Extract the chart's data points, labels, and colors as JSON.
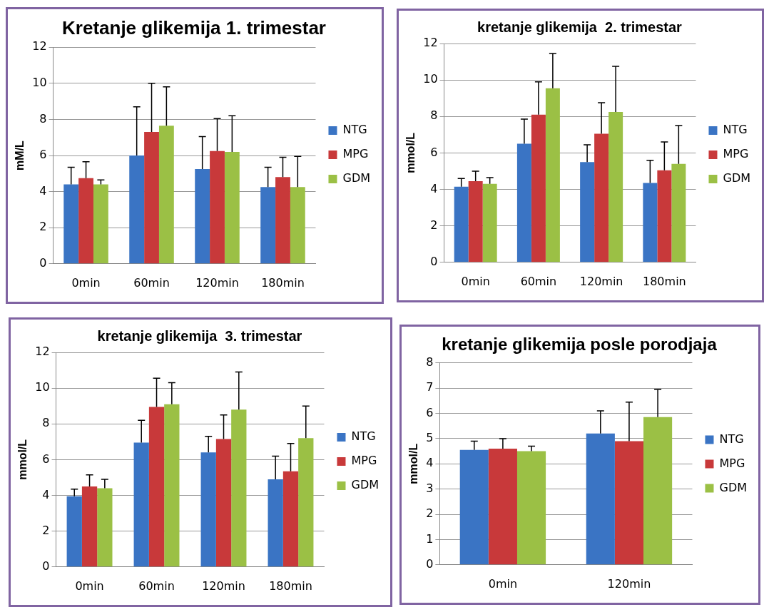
{
  "chart_data": [
    {
      "type": "bar",
      "title": "Kretanje glikemija 1. trimestar",
      "ylabel": "mM/L",
      "categories": [
        "0min",
        "60min",
        "120min",
        "180min"
      ],
      "ylim": [
        0,
        12
      ],
      "yticks": [
        0,
        2,
        4,
        6,
        8,
        10,
        12
      ],
      "grid": "y",
      "legend": "right",
      "series": [
        {
          "name": "NTG",
          "color": "#3a74c4",
          "values": [
            4.4,
            6.0,
            5.25,
            4.25
          ],
          "errors": [
            [
              4.4,
              5.35
            ],
            [
              6.0,
              8.7
            ],
            [
              5.25,
              7.05
            ],
            [
              4.25,
              5.35
            ]
          ]
        },
        {
          "name": "MPG",
          "color": "#c8393a",
          "values": [
            4.75,
            7.3,
            6.25,
            4.8
          ],
          "errors": [
            [
              4.75,
              5.65
            ],
            [
              7.3,
              10.0
            ],
            [
              6.25,
              8.05
            ],
            [
              4.8,
              5.9
            ]
          ]
        },
        {
          "name": "GDM",
          "color": "#9bc045",
          "values": [
            4.4,
            7.65,
            6.2,
            4.25
          ],
          "errors": [
            [
              4.4,
              4.65
            ],
            [
              7.65,
              9.8
            ],
            [
              6.2,
              8.2
            ],
            [
              4.25,
              5.95
            ]
          ]
        }
      ]
    },
    {
      "type": "bar",
      "title": "kretanje glikemija  2. trimestar",
      "ylabel": "mmol/L",
      "categories": [
        "0min",
        "60min",
        "120min",
        "180min"
      ],
      "ylim": [
        0,
        12
      ],
      "yticks": [
        0,
        2,
        4,
        6,
        8,
        10,
        12
      ],
      "grid": "y",
      "legend": "right",
      "series": [
        {
          "name": "NTG",
          "color": "#3a74c4",
          "values": [
            4.15,
            6.5,
            5.5,
            4.35
          ],
          "errors": [
            [
              4.15,
              4.6
            ],
            [
              6.5,
              7.85
            ],
            [
              5.5,
              6.45
            ],
            [
              4.35,
              5.6
            ]
          ]
        },
        {
          "name": "MPG",
          "color": "#c8393a",
          "values": [
            4.45,
            8.1,
            7.05,
            5.05
          ],
          "errors": [
            [
              4.45,
              5.0
            ],
            [
              8.1,
              9.9
            ],
            [
              7.05,
              8.75
            ],
            [
              5.05,
              6.6
            ]
          ]
        },
        {
          "name": "GDM",
          "color": "#9bc045",
          "values": [
            4.3,
            9.55,
            8.25,
            5.4
          ],
          "errors": [
            [
              4.3,
              4.65
            ],
            [
              9.55,
              11.45
            ],
            [
              8.25,
              10.75
            ],
            [
              5.4,
              7.5
            ]
          ]
        }
      ]
    },
    {
      "type": "bar",
      "title": "kretanje glikemija  3. trimestar",
      "ylabel": "mmol/L",
      "categories": [
        "0min",
        "60min",
        "120min",
        "180min"
      ],
      "ylim": [
        0,
        12
      ],
      "yticks": [
        0,
        2,
        4,
        6,
        8,
        10,
        12
      ],
      "grid": "y",
      "legend": "right",
      "series": [
        {
          "name": "NTG",
          "color": "#3a74c4",
          "values": [
            3.95,
            6.95,
            6.4,
            4.9
          ],
          "errors": [
            [
              3.95,
              4.35
            ],
            [
              6.95,
              8.2
            ],
            [
              6.4,
              7.3
            ],
            [
              4.9,
              6.2
            ]
          ]
        },
        {
          "name": "MPG",
          "color": "#c8393a",
          "values": [
            4.5,
            8.95,
            7.15,
            5.35
          ],
          "errors": [
            [
              4.5,
              5.15
            ],
            [
              8.95,
              10.55
            ],
            [
              7.15,
              8.5
            ],
            [
              5.35,
              6.9
            ]
          ]
        },
        {
          "name": "GDM",
          "color": "#9bc045",
          "values": [
            4.4,
            9.1,
            8.8,
            7.2
          ],
          "errors": [
            [
              4.4,
              4.9
            ],
            [
              9.1,
              10.3
            ],
            [
              8.8,
              10.9
            ],
            [
              7.2,
              9.0
            ]
          ]
        }
      ]
    },
    {
      "type": "bar",
      "title": "kretanje glikemija posle porodjaja",
      "ylabel": "mmol/L",
      "categories": [
        "0min",
        "120min"
      ],
      "ylim": [
        0,
        8
      ],
      "yticks": [
        0,
        1,
        2,
        3,
        4,
        5,
        6,
        7,
        8
      ],
      "grid": "y",
      "legend": "right",
      "series": [
        {
          "name": "NTG",
          "color": "#3a74c4",
          "values": [
            4.55,
            5.2
          ],
          "errors": [
            [
              4.55,
              4.9
            ],
            [
              5.2,
              6.1
            ]
          ]
        },
        {
          "name": "MPG",
          "color": "#c8393a",
          "values": [
            4.6,
            4.9
          ],
          "errors": [
            [
              4.6,
              5.0
            ],
            [
              4.9,
              6.45
            ]
          ]
        },
        {
          "name": "GDM",
          "color": "#9bc045",
          "values": [
            4.5,
            5.85
          ],
          "errors": [
            [
              4.5,
              4.7
            ],
            [
              5.85,
              6.95
            ]
          ]
        }
      ]
    }
  ]
}
